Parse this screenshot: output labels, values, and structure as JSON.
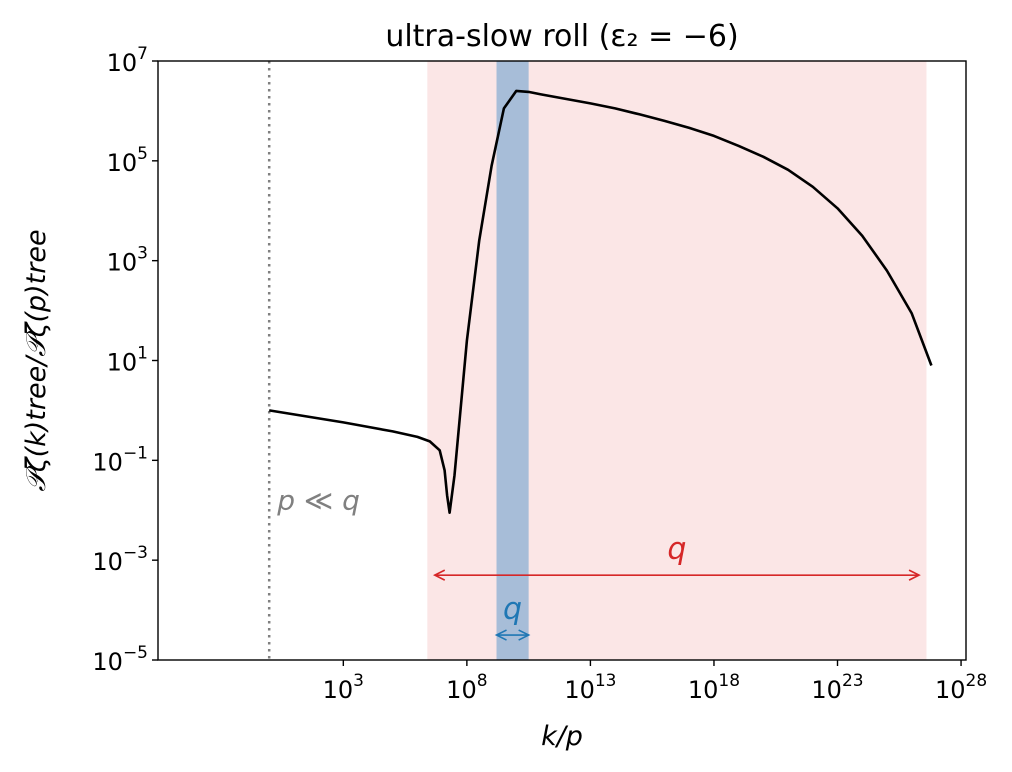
{
  "chart_data": {
    "type": "line",
    "title": "ultra-slow roll (ε₂ = −6)",
    "xlabel": "k/p",
    "ylabel": "𝒫ζ(k)tree/𝒫ζ(p)tree",
    "x_scale": "log",
    "y_scale": "log",
    "xlim_log10": [
      -4.5,
      28.2
    ],
    "ylim_log10": [
      -5,
      7
    ],
    "x_ticks": [
      {
        "exp": 3,
        "label": "3"
      },
      {
        "exp": 8,
        "label": "8"
      },
      {
        "exp": 13,
        "label": "13"
      },
      {
        "exp": 18,
        "label": "18"
      },
      {
        "exp": 23,
        "label": "23"
      },
      {
        "exp": 28,
        "label": "28"
      }
    ],
    "y_ticks": [
      {
        "exp": 7,
        "label": "7"
      },
      {
        "exp": 5,
        "label": "5"
      },
      {
        "exp": 3,
        "label": "3"
      },
      {
        "exp": 1,
        "label": "1"
      },
      {
        "exp": -1,
        "label": "−1"
      },
      {
        "exp": -3,
        "label": "−3"
      },
      {
        "exp": -5,
        "label": "−5"
      }
    ],
    "tick_base": "10",
    "series": [
      {
        "color": "#000000",
        "x_log10": [
          0,
          1,
          2,
          3,
          4,
          5,
          6,
          6.5,
          6.9,
          7.1,
          7.2,
          7.3,
          7.5,
          8,
          8.5,
          9,
          9.5,
          10,
          10.5,
          11,
          12,
          13,
          14,
          15,
          16,
          17,
          18,
          19,
          20,
          21,
          22,
          23,
          24,
          25,
          26,
          26.8
        ],
        "y_log10": [
          0,
          -0.08,
          -0.16,
          -0.24,
          -0.33,
          -0.42,
          -0.53,
          -0.62,
          -0.8,
          -1.2,
          -1.7,
          -2.05,
          -1.3,
          1.4,
          3.4,
          4.9,
          6.05,
          6.4,
          6.38,
          6.33,
          6.24,
          6.15,
          6.05,
          5.93,
          5.8,
          5.66,
          5.5,
          5.3,
          5.08,
          4.82,
          4.48,
          4.05,
          3.5,
          2.8,
          1.95,
          0.9
        ]
      }
    ],
    "shaded_regions": [
      {
        "name": "q",
        "x_log10": [
          6.4,
          26.6
        ],
        "color": "#fbe6e6"
      },
      {
        "name": "q",
        "x_log10": [
          9.2,
          10.5
        ],
        "color": "#a7bdd8"
      }
    ],
    "reference_line": {
      "x_log10": 0,
      "label": "p ≪ q",
      "color": "#808080",
      "style": "dotted"
    },
    "annotations": [
      {
        "text": "q",
        "color": "#d62728",
        "arrow_x_log10": [
          6.7,
          26.3
        ],
        "arrow_y_log10": -3.3
      },
      {
        "text": "q",
        "color": "#1f77b4",
        "arrow_x_log10": [
          9.2,
          10.5
        ],
        "arrow_y_log10": -4.5
      }
    ]
  }
}
